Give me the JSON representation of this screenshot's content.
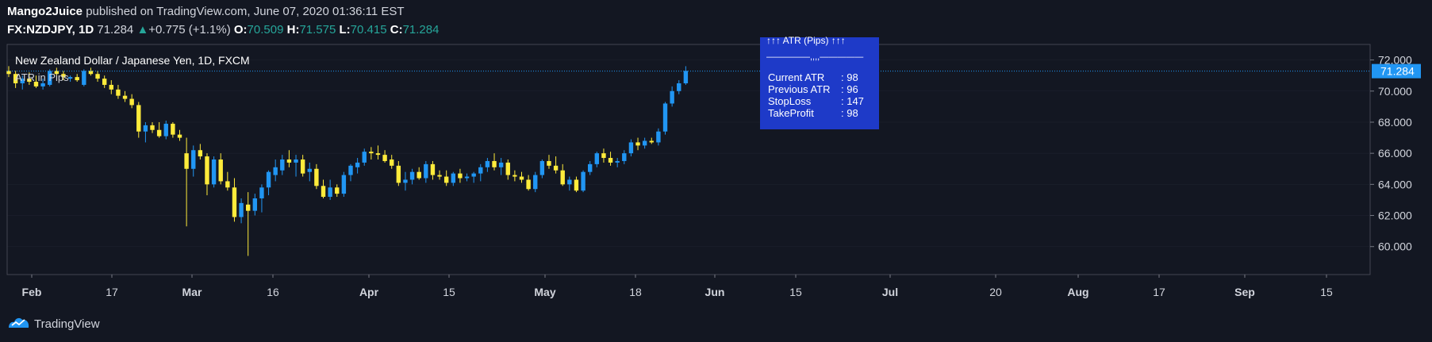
{
  "header": {
    "author": "Mango2Juice",
    "published_text": "published on TradingView.com, June 07, 2020 01:36:11 EST",
    "symbol": "FX:NZDJPY, 1D",
    "last": "71.284",
    "change": "+0.775 (+1.1%)",
    "open_label": "O:",
    "open": "70.509",
    "high_label": "H:",
    "high": "71.575",
    "low_label": "L:",
    "low": "70.415",
    "close_label": "C:",
    "close": "71.284"
  },
  "legend": {
    "title": "New Zealand Dollar / Japanese Yen, 1D, FXCM",
    "indicator": "ATR in Pips"
  },
  "info_box": {
    "title": "↑↑↑ ATR (Pips) ↑↑↑",
    "separator": "—————,,,,—————",
    "rows": [
      {
        "label": "Current ATR",
        "value": ": 98"
      },
      {
        "label": "Previous ATR",
        "value": ": 96"
      },
      {
        "label": "StopLoss",
        "value": ": 147"
      },
      {
        "label": "TakeProfit",
        "value": ": 98"
      }
    ]
  },
  "footer": {
    "brand": "TradingView"
  },
  "colors": {
    "background": "#131722",
    "up": "#2196f3",
    "down": "#ffeb3b",
    "grid": "#363c4e",
    "price_tag": "#2196f3",
    "info_box": "#1e3ac8"
  },
  "chart_data": {
    "type": "candlestick",
    "price_axis_ticks": [
      "72.000",
      "70.000",
      "68.000",
      "66.000",
      "64.000",
      "62.000",
      "60.000"
    ],
    "price_axis_values": [
      72,
      70,
      68,
      66,
      64,
      62,
      60
    ],
    "ylim": [
      58.2,
      73.0
    ],
    "last_price_label": "71.284",
    "last_price": 71.284,
    "time_axis_ticks": [
      "Feb",
      "17",
      "Mar",
      "16",
      "Apr",
      "15",
      "May",
      "18",
      "Jun",
      "15",
      "Jul",
      "20",
      "Aug",
      "17",
      "Sep",
      "15"
    ],
    "candles": [
      [
        71.3,
        71.6,
        70.9,
        71.1
      ],
      [
        71.1,
        71.3,
        70.2,
        70.5
      ],
      [
        70.5,
        71.0,
        70.1,
        70.8
      ],
      [
        70.8,
        71.2,
        70.4,
        70.6
      ],
      [
        70.6,
        71.0,
        70.2,
        70.3
      ],
      [
        70.3,
        70.8,
        70.1,
        70.5
      ],
      [
        70.4,
        71.4,
        70.3,
        71.3
      ],
      [
        71.3,
        71.5,
        71.0,
        71.1
      ],
      [
        71.1,
        71.3,
        70.7,
        70.9
      ],
      [
        70.8,
        71.0,
        70.6,
        70.9
      ],
      [
        70.9,
        71.1,
        70.6,
        70.7
      ],
      [
        70.4,
        71.4,
        70.3,
        71.3
      ],
      [
        71.3,
        71.5,
        71.0,
        71.1
      ],
      [
        71.1,
        71.3,
        70.6,
        70.8
      ],
      [
        70.8,
        71.0,
        70.2,
        70.4
      ],
      [
        70.4,
        70.7,
        69.8,
        70.1
      ],
      [
        70.1,
        70.4,
        69.5,
        69.7
      ],
      [
        69.7,
        70.0,
        69.3,
        69.5
      ],
      [
        69.5,
        69.8,
        68.9,
        69.1
      ],
      [
        69.1,
        69.3,
        67.0,
        67.4
      ],
      [
        67.4,
        68.0,
        66.7,
        67.8
      ],
      [
        67.8,
        68.0,
        67.3,
        67.5
      ],
      [
        67.5,
        68.0,
        67.0,
        67.1
      ],
      [
        67.1,
        68.1,
        66.9,
        67.9
      ],
      [
        67.9,
        68.0,
        67.0,
        67.2
      ],
      [
        67.2,
        67.5,
        66.8,
        67.0
      ],
      [
        66.0,
        67.0,
        61.3,
        65.0
      ],
      [
        65.0,
        66.5,
        64.5,
        66.2
      ],
      [
        66.2,
        66.6,
        65.6,
        65.8
      ],
      [
        65.8,
        66.0,
        63.3,
        64.0
      ],
      [
        64.0,
        65.8,
        63.8,
        65.6
      ],
      [
        65.6,
        66.0,
        64.0,
        64.2
      ],
      [
        64.2,
        64.8,
        63.6,
        63.8
      ],
      [
        63.8,
        64.4,
        61.6,
        61.9
      ],
      [
        61.9,
        63.1,
        61.5,
        62.8
      ],
      [
        62.7,
        63.5,
        59.4,
        62.3
      ],
      [
        62.3,
        63.4,
        62.0,
        63.1
      ],
      [
        63.1,
        64.0,
        62.2,
        63.8
      ],
      [
        63.8,
        64.9,
        63.3,
        64.8
      ],
      [
        64.6,
        65.6,
        64.2,
        65.1
      ],
      [
        64.9,
        65.9,
        64.6,
        65.6
      ],
      [
        65.6,
        66.2,
        65.1,
        65.4
      ],
      [
        65.4,
        65.9,
        64.5,
        65.6
      ],
      [
        65.6,
        65.9,
        64.5,
        64.7
      ],
      [
        64.8,
        65.4,
        64.2,
        65.0
      ],
      [
        65.0,
        65.3,
        63.7,
        63.9
      ],
      [
        63.9,
        64.3,
        63.1,
        63.2
      ],
      [
        63.2,
        64.3,
        63.0,
        63.8
      ],
      [
        63.8,
        64.0,
        63.2,
        63.4
      ],
      [
        63.4,
        64.8,
        63.2,
        64.6
      ],
      [
        64.6,
        65.3,
        64.2,
        65.2
      ],
      [
        65.1,
        65.7,
        64.7,
        65.4
      ],
      [
        65.4,
        66.3,
        65.2,
        66.1
      ],
      [
        66.1,
        66.4,
        65.6,
        66.0
      ],
      [
        66.0,
        66.5,
        65.6,
        65.9
      ],
      [
        65.9,
        66.2,
        65.4,
        65.5
      ],
      [
        65.6,
        65.9,
        65.0,
        65.2
      ],
      [
        65.2,
        65.5,
        63.9,
        64.1
      ],
      [
        64.1,
        64.8,
        63.6,
        64.3
      ],
      [
        64.3,
        65.0,
        64.0,
        64.8
      ],
      [
        64.8,
        65.1,
        64.3,
        64.4
      ],
      [
        64.4,
        65.5,
        64.1,
        65.3
      ],
      [
        65.3,
        65.5,
        64.3,
        64.6
      ],
      [
        64.6,
        64.9,
        64.3,
        64.5
      ],
      [
        64.5,
        64.9,
        63.9,
        64.1
      ],
      [
        64.1,
        64.8,
        63.9,
        64.7
      ],
      [
        64.7,
        65.0,
        64.1,
        64.4
      ],
      [
        64.4,
        64.7,
        64.2,
        64.5
      ],
      [
        64.5,
        64.8,
        64.1,
        64.7
      ],
      [
        64.7,
        65.3,
        64.2,
        65.1
      ],
      [
        65.1,
        65.7,
        64.8,
        65.5
      ],
      [
        65.5,
        66.0,
        64.9,
        65.1
      ],
      [
        65.1,
        65.7,
        64.6,
        65.4
      ],
      [
        65.4,
        65.6,
        64.3,
        64.6
      ],
      [
        64.6,
        64.9,
        64.2,
        64.5
      ],
      [
        64.5,
        64.8,
        64.1,
        64.3
      ],
      [
        64.3,
        64.6,
        63.6,
        63.7
      ],
      [
        63.7,
        64.8,
        63.5,
        64.6
      ],
      [
        64.6,
        65.6,
        64.4,
        65.5
      ],
      [
        65.5,
        65.9,
        65.0,
        65.2
      ],
      [
        65.2,
        65.8,
        64.7,
        64.9
      ],
      [
        64.9,
        65.3,
        63.9,
        64.0
      ],
      [
        64.0,
        64.5,
        63.6,
        64.3
      ],
      [
        64.3,
        64.5,
        63.5,
        63.6
      ],
      [
        63.6,
        64.9,
        63.5,
        64.8
      ],
      [
        64.8,
        65.5,
        64.6,
        65.3
      ],
      [
        65.3,
        66.1,
        65.1,
        66.0
      ],
      [
        66.0,
        66.3,
        65.4,
        65.7
      ],
      [
        65.7,
        66.1,
        65.2,
        65.4
      ],
      [
        65.4,
        65.7,
        65.1,
        65.5
      ],
      [
        65.5,
        66.2,
        65.3,
        66.0
      ],
      [
        66.0,
        66.9,
        65.8,
        66.7
      ],
      [
        66.7,
        67.0,
        66.2,
        66.5
      ],
      [
        66.5,
        67.0,
        66.3,
        66.8
      ],
      [
        66.8,
        67.0,
        66.6,
        66.7
      ],
      [
        66.7,
        67.6,
        66.5,
        67.4
      ],
      [
        67.4,
        69.3,
        67.2,
        69.2
      ],
      [
        69.2,
        70.3,
        69.0,
        70.0
      ],
      [
        70.0,
        70.7,
        69.8,
        70.5
      ],
      [
        70.5,
        71.6,
        70.4,
        71.3
      ]
    ]
  }
}
